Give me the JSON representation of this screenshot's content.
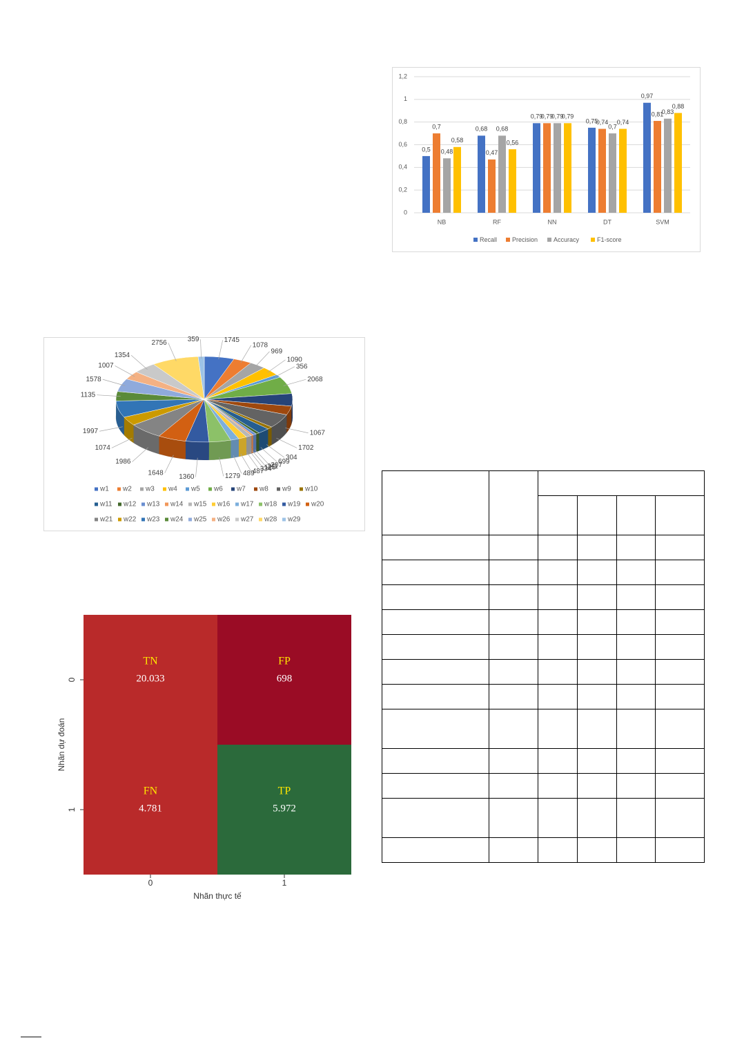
{
  "chart_data": [
    {
      "type": "bar",
      "categories": [
        "NB",
        "RF",
        "NN",
        "DT",
        "SVM"
      ],
      "series": [
        {
          "name": "Recall",
          "color": "#4472c4",
          "values": [
            0.5,
            0.68,
            0.79,
            0.75,
            0.97
          ],
          "value_labels": [
            "0,5",
            "0,68",
            "0,79",
            "0,75",
            "0,97"
          ]
        },
        {
          "name": "Precision",
          "color": "#ed7d31",
          "values": [
            0.7,
            0.47,
            0.79,
            0.74,
            0.81
          ],
          "value_labels": [
            "0,7",
            "0,47",
            "0,79",
            "0,74",
            "0,81"
          ]
        },
        {
          "name": "Accuracy",
          "color": "#a5a5a5",
          "values": [
            0.48,
            0.68,
            0.79,
            0.7,
            0.83
          ],
          "value_labels": [
            "0,48",
            "0,68",
            "0,79",
            "0,7",
            "0,83"
          ]
        },
        {
          "name": "F1-score",
          "color": "#ffc000",
          "values": [
            0.58,
            0.56,
            0.79,
            0.74,
            0.88
          ],
          "value_labels": [
            "0,58",
            "0,56",
            "0,79",
            "0,74",
            "0,88"
          ]
        }
      ],
      "ylim": [
        0,
        1.2
      ],
      "yticks": [
        0,
        {
          "value": 0.2,
          "label": "0,2"
        },
        {
          "value": 0.4,
          "label": "0,4"
        },
        {
          "value": 0.6,
          "label": "0,6"
        },
        {
          "value": 0.8,
          "label": "0,8"
        },
        1,
        {
          "value": 1.2,
          "label": "1,2"
        }
      ],
      "grid": true,
      "legend": "bottom"
    },
    {
      "type": "pie",
      "categories": [
        "w1",
        "w2",
        "w3",
        "w4",
        "w5",
        "w6",
        "w7",
        "w8",
        "w9",
        "w10",
        "w11",
        "w12",
        "w13",
        "w14",
        "w15",
        "w16",
        "w17",
        "w18",
        "w19",
        "w20",
        "w21",
        "w22",
        "w23",
        "w24",
        "w25",
        "w26",
        "w27",
        "w28",
        "w29"
      ],
      "values": [
        1745,
        1078,
        969,
        1090,
        356,
        2068,
        1500,
        1067,
        1702,
        304,
        699,
        207,
        211,
        125,
        334,
        487,
        489,
        1279,
        1360,
        1648,
        1986,
        1074,
        1997,
        1135,
        1578,
        1007,
        1354,
        2756,
        359
      ],
      "value_labels": [
        "1745",
        "1078",
        "969",
        "1090",
        "356",
        "2068",
        null,
        "1067",
        "1702",
        "304",
        "699",
        "207",
        "211",
        "125",
        "334",
        "487",
        "489",
        "1279",
        "1360",
        "1648",
        "1986",
        "1074",
        "1997",
        "1135",
        "1578",
        "1007",
        "1354",
        "2756",
        "359"
      ],
      "colors": [
        "#4472c4",
        "#ed7d31",
        "#a5a5a5",
        "#ffc000",
        "#5b9bd5",
        "#70ad47",
        "#264478",
        "#9e480e",
        "#636363",
        "#997300",
        "#255e91",
        "#43682b",
        "#698ed0",
        "#f1975a",
        "#b7b7b7",
        "#ffcd33",
        "#7cafdd",
        "#8cc168",
        "#335aa1",
        "#d26012",
        "#848484",
        "#cc9a00",
        "#3275b6",
        "#5a8a39",
        "#8faadc",
        "#f4b183",
        "#c9c9c9",
        "#ffd966",
        "#9dc3e6"
      ],
      "legend": "bottom"
    },
    {
      "type": "heatmap",
      "x_categories": [
        0,
        1
      ],
      "y_categories": [
        0,
        1
      ],
      "xlabel": "Nhãn thực tế",
      "ylabel": "Nhãn dự đoán",
      "values": [
        [
          20033,
          698
        ],
        [
          4781,
          5972
        ]
      ],
      "value_labels": [
        [
          "20.033",
          "698"
        ],
        [
          "4.781",
          "5.972"
        ]
      ],
      "cell_labels": [
        [
          "TN",
          "FP"
        ],
        [
          "FN",
          "TP"
        ]
      ],
      "colors": [
        [
          "#b92a2a",
          "#9a0c25"
        ],
        [
          "#b92a2a",
          "#2b6a3b"
        ]
      ]
    }
  ]
}
